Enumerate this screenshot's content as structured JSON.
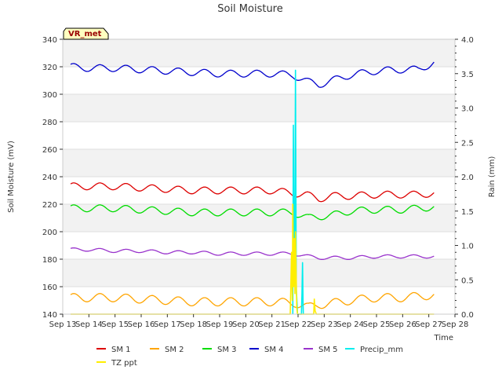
{
  "chart_data": {
    "type": "line",
    "title": "Soil Moisture",
    "xlabel": "Time",
    "ylabel": "Soil Moisture (mV)",
    "y2label": "Rain (mm)",
    "site_label": "VR_met",
    "xlim": [
      13,
      28
    ],
    "ylim": [
      140,
      340
    ],
    "y2lim": [
      0.0,
      4.0
    ],
    "x_ticks": [
      {
        "value": 13,
        "label": "Sep 13"
      },
      {
        "value": 14,
        "label": "Sep 14"
      },
      {
        "value": 15,
        "label": "Sep 15"
      },
      {
        "value": 16,
        "label": "Sep 16"
      },
      {
        "value": 17,
        "label": "Sep 17"
      },
      {
        "value": 18,
        "label": "Sep 18"
      },
      {
        "value": 19,
        "label": "Sep 19"
      },
      {
        "value": 20,
        "label": "Sep 20"
      },
      {
        "value": 21,
        "label": "Sep 21"
      },
      {
        "value": 22,
        "label": "Sep 22"
      },
      {
        "value": 23,
        "label": "Sep 23"
      },
      {
        "value": 24,
        "label": "Sep 24"
      },
      {
        "value": 25,
        "label": "Sep 25"
      },
      {
        "value": 26,
        "label": "Sep 26"
      },
      {
        "value": 27,
        "label": "Sep 27"
      },
      {
        "value": 28,
        "label": "Sep 28"
      }
    ],
    "y_ticks": [
      140,
      160,
      180,
      200,
      220,
      240,
      260,
      280,
      300,
      320,
      340
    ],
    "y2_ticks": [
      "0.0",
      "0.5",
      "1.0",
      "1.5",
      "2.0",
      "2.5",
      "3.0",
      "3.5",
      "4.0"
    ],
    "series": [
      {
        "name": "SM 1",
        "color": "#dd0000",
        "axis": "left",
        "x": [
          13.3,
          14,
          15,
          16,
          17,
          18,
          19,
          20,
          21,
          21.8,
          22.3,
          22.8,
          23.3,
          24,
          25,
          26,
          26.6,
          27.2
        ],
        "y": [
          233,
          233,
          233,
          232,
          231,
          230,
          230,
          230,
          230,
          228,
          227,
          224,
          226,
          226,
          227,
          227,
          227,
          228
        ],
        "amp": 2.5
      },
      {
        "name": "SM 2",
        "color": "#ffa500",
        "axis": "left",
        "x": [
          13.3,
          14,
          15,
          16,
          17,
          18,
          19,
          20,
          21,
          21.9,
          22.4,
          22.8,
          23.3,
          24,
          25,
          26,
          27.2
        ],
        "y": [
          152,
          152,
          152,
          151,
          150,
          149,
          149,
          149,
          149,
          148,
          145,
          147,
          148,
          150,
          152,
          152,
          154
        ],
        "amp": 3
      },
      {
        "name": "SM 3",
        "color": "#00dd00",
        "axis": "left",
        "x": [
          13.3,
          14,
          15,
          16,
          17,
          18,
          19,
          20,
          21,
          21.8,
          22.4,
          22.8,
          23.3,
          24,
          25,
          26,
          27.2
        ],
        "y": [
          217,
          217,
          217,
          216,
          215,
          214,
          214,
          214,
          214,
          214,
          210,
          211,
          212,
          215,
          216,
          216,
          218
        ],
        "amp": 2.5
      },
      {
        "name": "SM 4",
        "color": "#0000cc",
        "axis": "left",
        "x": [
          13.3,
          14,
          15,
          16,
          17,
          18,
          19,
          20,
          21,
          21.8,
          22.4,
          22.8,
          23.3,
          24,
          25,
          26,
          26.6,
          27.2
        ],
        "y": [
          320,
          319,
          319,
          318,
          317,
          316,
          315,
          315,
          315,
          314,
          309,
          307,
          310,
          314,
          317,
          318,
          318,
          323
        ],
        "amp": 2.5
      },
      {
        "name": "SM 5",
        "color": "#9933cc",
        "axis": "left",
        "x": [
          13.3,
          14,
          15,
          16,
          17,
          18,
          19,
          20,
          21,
          21.8,
          22.4,
          22.8,
          23.3,
          24,
          25,
          26,
          27.2
        ],
        "y": [
          187,
          187,
          186,
          186,
          185,
          185,
          184,
          184,
          184,
          184,
          182,
          181,
          181,
          181,
          182,
          182,
          182
        ],
        "amp": 1.2
      },
      {
        "name": "Precip_mm",
        "color": "#00eeee",
        "axis": "right",
        "x": [
          21.8,
          21.82,
          21.84,
          21.87,
          21.9,
          21.93,
          21.95,
          21.98,
          22.0,
          22.02,
          22.05,
          22.08,
          22.1,
          22.13,
          22.15,
          22.17,
          22.19,
          22.2
        ],
        "y": [
          0,
          2.75,
          1.05,
          0.45,
          3.55,
          0.35,
          0.25,
          0.0,
          0.0,
          0.0,
          0.0,
          0.0,
          0.0,
          0.0,
          0.3,
          0.75,
          0.2,
          0.0
        ]
      },
      {
        "name": "TZ ppt",
        "color": "#ffee00",
        "axis": "right",
        "x": [
          13.3,
          21.7,
          21.75,
          21.78,
          21.8,
          21.83,
          21.86,
          21.88,
          21.9,
          21.93,
          21.95,
          21.98,
          22.0,
          22.05,
          22.1,
          22.12,
          22.15,
          22.2,
          22.6,
          22.62,
          22.65,
          22.7,
          27.2
        ],
        "y": [
          0,
          0,
          0.9,
          0.2,
          1.6,
          0.4,
          1.1,
          0.3,
          1.2,
          0.5,
          0.1,
          0.0,
          0.0,
          0.0,
          0.0,
          0.0,
          0.0,
          0.0,
          0.0,
          0.22,
          0.05,
          0.0,
          0
        ]
      }
    ],
    "legend": [
      "SM 1",
      "SM 2",
      "SM 3",
      "SM 4",
      "SM 5",
      "Precip_mm",
      "TZ ppt"
    ],
    "legend_position": "bottom",
    "grid": true
  }
}
